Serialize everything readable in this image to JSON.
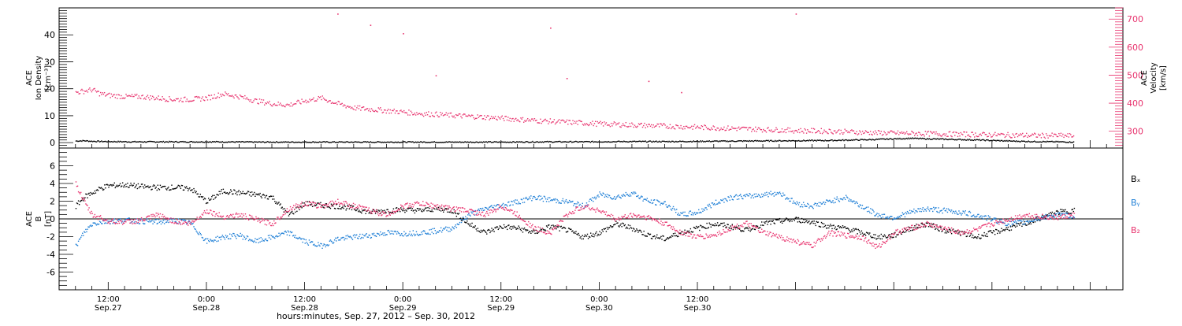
{
  "chart_data": [
    {
      "type": "scatter",
      "panel": "ion-density-velocity",
      "ylabel_left": [
        "ACE",
        "Ion Density",
        "[cm⁻³]"
      ],
      "ylabel_right": [
        "ACE",
        "Velocity",
        "[km/s]"
      ],
      "ylim_left": [
        -2,
        50
      ],
      "ylim_right": [
        240,
        740
      ],
      "left_ticks": [
        "0",
        "10",
        "20",
        "30",
        "40"
      ],
      "right_ticks": [
        "300",
        "400",
        "500",
        "600",
        "700"
      ],
      "grid": false,
      "series": [
        {
          "name": "",
          "axis": "left",
          "color": "#000000",
          "points_hours": [
            8,
            9,
            10,
            12,
            15,
            20,
            25,
            30,
            35,
            40,
            45,
            50,
            55,
            60,
            65,
            70,
            75,
            80,
            85,
            90,
            95,
            100,
            105,
            108,
            110,
            112,
            115,
            118,
            120,
            122,
            125,
            128,
            130
          ],
          "values": [
            0.8,
            0.9,
            0.7,
            0.6,
            0.5,
            0.5,
            0.5,
            0.4,
            0.4,
            0.4,
            0.4,
            0.4,
            0.4,
            0.4,
            0.5,
            0.5,
            0.6,
            0.6,
            0.7,
            0.8,
            0.9,
            1.0,
            1.3,
            1.6,
            1.8,
            1.6,
            1.4,
            1.2,
            1.0,
            0.8,
            0.6,
            0.5,
            0.4
          ]
        },
        {
          "name": "",
          "axis": "right",
          "color": "#e8336e",
          "points_hours": [
            8,
            9,
            10,
            11,
            12,
            14,
            16,
            18,
            20,
            22,
            24,
            26,
            28,
            30,
            32,
            34,
            36,
            38,
            40,
            42,
            44,
            46,
            48,
            50,
            52,
            54,
            56,
            58,
            60,
            62,
            64,
            66,
            68,
            70,
            72,
            74,
            76,
            78,
            80,
            82,
            84,
            86,
            88,
            90,
            92,
            94,
            96,
            98,
            100,
            102,
            104,
            106,
            108,
            110,
            112,
            114,
            116,
            118,
            120,
            122,
            124,
            126,
            128,
            130
          ],
          "values": [
            440,
            445,
            450,
            435,
            430,
            425,
            425,
            420,
            415,
            415,
            420,
            435,
            425,
            410,
            400,
            395,
            410,
            420,
            400,
            385,
            380,
            375,
            370,
            365,
            362,
            358,
            355,
            352,
            348,
            344,
            340,
            337,
            334,
            331,
            328,
            326,
            324,
            322,
            320,
            318,
            316,
            314,
            312,
            310,
            308,
            306,
            304,
            303,
            302,
            300,
            298,
            296,
            295,
            294,
            293,
            292,
            291,
            290,
            289,
            288,
            287,
            286,
            286,
            285
          ]
        }
      ],
      "outliers_right": [
        {
          "x": 40,
          "y": 720
        },
        {
          "x": 44,
          "y": 680
        },
        {
          "x": 48,
          "y": 650
        },
        {
          "x": 52,
          "y": 500
        },
        {
          "x": 66,
          "y": 670
        },
        {
          "x": 68,
          "y": 490
        },
        {
          "x": 78,
          "y": 480
        },
        {
          "x": 82,
          "y": 440
        },
        {
          "x": 96,
          "y": 720
        }
      ]
    },
    {
      "type": "scatter",
      "panel": "magnetic-field",
      "ylabel": [
        "ACE",
        "B",
        "[nT]"
      ],
      "ylim": [
        -8,
        8
      ],
      "ticks": [
        "-6",
        "-4",
        "-2",
        "0",
        "2",
        "4",
        "6"
      ],
      "zero_line": true,
      "series": [
        {
          "name": "Bₓ",
          "color": "#000000",
          "points_hours": [
            8,
            9,
            10,
            11,
            12,
            14,
            16,
            18,
            20,
            22,
            24,
            26,
            28,
            30,
            32,
            34,
            36,
            38,
            40,
            42,
            44,
            46,
            48,
            50,
            52,
            54,
            56,
            58,
            60,
            62,
            64,
            66,
            68,
            70,
            72,
            74,
            76,
            78,
            80,
            82,
            84,
            86,
            88,
            90,
            92,
            94,
            96,
            98,
            100,
            102,
            104,
            106,
            108,
            110,
            112,
            114,
            116,
            118,
            120,
            122,
            124,
            126,
            128,
            130
          ],
          "values": [
            1.5,
            2.5,
            3.0,
            3.5,
            3.8,
            3.9,
            3.7,
            3.6,
            3.6,
            3.5,
            2.0,
            3.2,
            3.0,
            2.8,
            2.5,
            0.5,
            1.8,
            1.6,
            1.5,
            1.2,
            0.8,
            1.0,
            1.1,
            1.0,
            1.2,
            1.0,
            -0.5,
            -1.5,
            -0.8,
            -1.0,
            -1.5,
            -0.8,
            -1.2,
            -2.0,
            -1.5,
            -0.5,
            -1.0,
            -1.8,
            -2.2,
            -1.5,
            -1.0,
            -0.5,
            -0.8,
            -1.2,
            -0.5,
            -0.2,
            0.0,
            -0.3,
            -0.8,
            -1.0,
            -1.5,
            -2.0,
            -1.8,
            -1.0,
            -0.5,
            -1.2,
            -1.5,
            -2.0,
            -1.5,
            -1.0,
            -0.5,
            0.2,
            0.8,
            1.0
          ]
        },
        {
          "name": "Bᵧ",
          "color": "#1e7fd6",
          "points_hours": [
            8,
            9,
            10,
            11,
            12,
            14,
            16,
            18,
            20,
            22,
            24,
            26,
            28,
            30,
            32,
            34,
            36,
            38,
            40,
            42,
            44,
            46,
            48,
            50,
            52,
            54,
            56,
            58,
            60,
            62,
            64,
            66,
            68,
            70,
            72,
            74,
            76,
            78,
            80,
            82,
            84,
            86,
            88,
            90,
            92,
            94,
            96,
            98,
            100,
            102,
            104,
            106,
            108,
            110,
            112,
            114,
            116,
            118,
            120,
            122,
            124,
            126,
            128,
            130
          ],
          "values": [
            -3.0,
            -1.5,
            -0.5,
            -0.3,
            -0.2,
            -0.1,
            -0.2,
            -0.3,
            -0.1,
            -0.4,
            -2.5,
            -2.0,
            -1.8,
            -2.5,
            -2.0,
            -1.5,
            -2.5,
            -3.0,
            -2.2,
            -2.0,
            -1.8,
            -1.5,
            -1.6,
            -1.5,
            -1.3,
            -1.0,
            0.5,
            1.2,
            1.6,
            2.0,
            2.5,
            2.2,
            2.0,
            1.5,
            2.8,
            2.5,
            3.0,
            2.0,
            1.8,
            0.5,
            0.8,
            1.8,
            2.5,
            2.6,
            2.8,
            3.0,
            1.8,
            1.5,
            2.0,
            2.5,
            1.5,
            0.5,
            0.2,
            0.8,
            1.2,
            1.0,
            0.8,
            0.5,
            0.0,
            -0.5,
            -0.3,
            0.2,
            0.5,
            0.4
          ]
        },
        {
          "name": "B₂",
          "color": "#e8336e",
          "points_hours": [
            8,
            9,
            10,
            11,
            12,
            14,
            16,
            18,
            20,
            22,
            24,
            26,
            28,
            30,
            32,
            34,
            36,
            38,
            40,
            42,
            44,
            46,
            48,
            50,
            52,
            54,
            56,
            58,
            60,
            62,
            64,
            66,
            68,
            70,
            72,
            74,
            76,
            78,
            80,
            82,
            84,
            86,
            88,
            90,
            92,
            94,
            96,
            98,
            100,
            102,
            104,
            106,
            108,
            110,
            112,
            114,
            116,
            118,
            120,
            122,
            124,
            126,
            128,
            130
          ],
          "values": [
            4.0,
            2.0,
            0.5,
            0.2,
            -0.2,
            -0.3,
            -0.1,
            0.5,
            -0.2,
            -0.5,
            1.0,
            0.3,
            0.5,
            0.0,
            -0.5,
            1.2,
            1.8,
            1.5,
            2.0,
            1.5,
            1.0,
            0.5,
            1.5,
            1.8,
            1.5,
            1.2,
            1.0,
            0.5,
            1.5,
            0.5,
            -1.0,
            -1.5,
            0.5,
            1.5,
            1.0,
            0.0,
            0.5,
            0.2,
            -0.5,
            -1.5,
            -2.0,
            -1.8,
            -1.0,
            -0.5,
            -1.5,
            -2.0,
            -2.5,
            -3.0,
            -1.5,
            -1.8,
            -2.0,
            -3.2,
            -1.5,
            -1.0,
            -0.5,
            -1.0,
            -1.5,
            -1.2,
            -0.5,
            0.0,
            0.5,
            0.3,
            0.2,
            0.5
          ]
        }
      ]
    }
  ],
  "x_axis": {
    "label": "hours:minutes, Sep. 27, 2012 – Sep. 30, 2012",
    "xlim_hours": [
      6,
      136
    ],
    "ticks": [
      {
        "hour": 12,
        "time": "12:00",
        "date": "Sep.27"
      },
      {
        "hour": 24,
        "time": "0:00",
        "date": "Sep.28"
      },
      {
        "hour": 36,
        "time": "12:00",
        "date": "Sep.28"
      },
      {
        "hour": 48,
        "time": "0:00",
        "date": "Sep.29"
      },
      {
        "hour": 60,
        "time": "12:00",
        "date": "Sep.29"
      },
      {
        "hour": 72,
        "time": "0:00",
        "date": "Sep.30"
      },
      {
        "hour": 84,
        "time": "12:00",
        "date": "Sep.30"
      }
    ]
  },
  "colors": {
    "density": "#000000",
    "velocity": "#e8336e",
    "bx": "#000000",
    "by": "#1e7fd6",
    "bz": "#e8336e"
  }
}
